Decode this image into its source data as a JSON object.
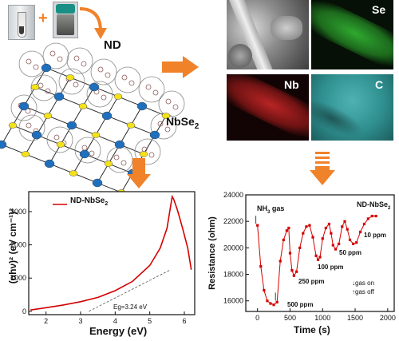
{
  "structure": {
    "nd_label": "ND",
    "nbse2_label_main": "NbSe",
    "nbse2_label_sub": "2"
  },
  "eds_maps": {
    "sem_label": "",
    "se_label": "Se",
    "nb_label": "Nb",
    "c_label": "C"
  },
  "tauc_chart": {
    "legend": "ND-NbSe",
    "legend_sub": "2",
    "xlabel": "Energy (eV)",
    "ylabel": "(αhν)² (eV cm⁻¹)²",
    "annotation": "Eg=3.24 eV",
    "xticks": [
      "2",
      "3",
      "4",
      "5",
      "6"
    ],
    "yticks": [
      "0",
      "1000",
      "2000",
      "3000"
    ]
  },
  "sensing_chart": {
    "title": "ND-NbSe",
    "title_sub": "2",
    "gas_label": "NH",
    "gas_label_sub": "3",
    "gas_label_end": " gas",
    "xlabel": "Time (s)",
    "ylabel": "Resistance (ohm)",
    "xticks": [
      "0",
      "500",
      "1000",
      "1500",
      "2000"
    ],
    "yticks": [
      "16000",
      "18000",
      "20000",
      "22000",
      "24000"
    ],
    "conc_labels": [
      "500 ppm",
      "250 ppm",
      "100 ppm",
      "50 ppm",
      "10 ppm"
    ],
    "legend_on": "gas on",
    "legend_off": "gas off"
  },
  "colors": {
    "arrow": "#f0822a",
    "curve": "#d40000",
    "sphere_blue": "#1f6fbd",
    "sphere_yellow": "#f3e11b"
  },
  "chart_data": [
    {
      "type": "line",
      "xlabel": "Energy (eV)",
      "ylabel": "(αhν)² (eV cm⁻¹)²",
      "xlim": [
        1.5,
        6.3
      ],
      "ylim": [
        -100,
        3600
      ],
      "legend": "ND-NbSe2",
      "series": [
        {
          "name": "ND-NbSe2",
          "x": [
            1.55,
            2.0,
            2.5,
            3.0,
            3.5,
            4.0,
            4.5,
            5.0,
            5.3,
            5.5,
            5.6,
            5.65,
            5.7,
            5.8,
            5.95,
            6.1,
            6.2
          ],
          "y": [
            40,
            110,
            190,
            290,
            420,
            620,
            900,
            1380,
            1900,
            2500,
            3150,
            3450,
            3350,
            3050,
            2500,
            1900,
            1250
          ]
        }
      ],
      "tangent_x_intercept": 3.24
    },
    {
      "type": "line",
      "xlabel": "Time (s)",
      "ylabel": "Resistance (ohm)",
      "xlim": [
        -180,
        2100
      ],
      "ylim": [
        15200,
        24000
      ],
      "series": [
        {
          "name": "ND-NbSe2",
          "x": [
            0,
            50,
            100,
            150,
            200,
            250,
            300,
            350,
            400,
            450,
            480,
            500,
            530,
            560,
            600,
            650,
            700,
            750,
            800,
            850,
            900,
            930,
            960,
            1000,
            1050,
            1100,
            1130,
            1160,
            1200,
            1250,
            1300,
            1340,
            1380,
            1420,
            1470,
            1520,
            1580,
            1640,
            1700,
            1760,
            1820
          ],
          "y": [
            21700,
            18600,
            16800,
            16000,
            15800,
            15700,
            15900,
            19000,
            20600,
            21300,
            21500,
            19600,
            18300,
            17900,
            18200,
            20000,
            21100,
            21600,
            21700,
            20800,
            19400,
            19100,
            19300,
            20700,
            21500,
            21800,
            21100,
            20200,
            19900,
            20300,
            21600,
            22000,
            21400,
            20600,
            20300,
            20400,
            21200,
            21800,
            22200,
            22400,
            22400
          ]
        }
      ],
      "annotations": [
        "500 ppm",
        "250 ppm",
        "100 ppm",
        "50 ppm",
        "10 ppm"
      ]
    }
  ]
}
